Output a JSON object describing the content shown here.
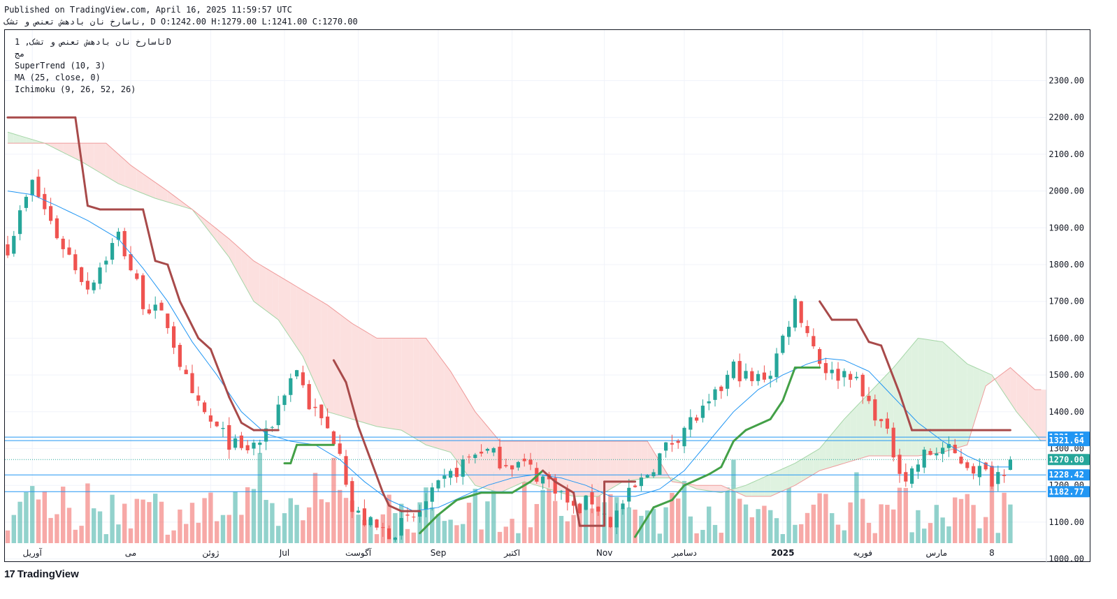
{
  "header": {
    "published": "Published on TradingView.com, April 16, 2025 11:59:57 UTC",
    "ohlc": "ناسارخ نان بادهش تعنص و تشک, D O:1242.00 H:1279.00 L:1241.00 C:1270.00"
  },
  "legend": {
    "symbol": "ناسارخ نان بادهش تعنص و تشک, 1D",
    "exchange": "مج",
    "supertrend": "SuperTrend (10, 3)",
    "ma": "MA (25, close, 0)",
    "ichimoku": "Ichimoku (9, 26, 52, 26)"
  },
  "brand": {
    "name": "TradingView",
    "mark": "17"
  },
  "colors": {
    "up": "#26a69a",
    "down": "#ef5350",
    "supertrend_up": "#43a047",
    "supertrend_down": "#a84a4a",
    "ma": "#2196f3",
    "hline": "#2196f3",
    "cloud_bear": "#fce0df",
    "cloud_bull": "#dff2e0",
    "span_a": "#a5d6a7",
    "span_b": "#ef9a9a"
  },
  "chart_data": {
    "type": "candlestick",
    "timeframe": "1D",
    "y_ticks": [
      1000,
      1100,
      1200,
      1300,
      1400,
      1500,
      1600,
      1700,
      1800,
      1900,
      2000,
      2100,
      2200,
      2300
    ],
    "x_ticks": [
      {
        "label": "آوریل",
        "i": 4
      },
      {
        "label": "می",
        "i": 20
      },
      {
        "label": "ژوئن",
        "i": 33
      },
      {
        "label": "Jul",
        "i": 45
      },
      {
        "label": "آگوست",
        "i": 57
      },
      {
        "label": "Sep",
        "i": 70
      },
      {
        "label": "اکتبر",
        "i": 82
      },
      {
        "label": "Nov",
        "i": 97
      },
      {
        "label": "دسامبر",
        "i": 110
      },
      {
        "label": "2025",
        "i": 126
      },
      {
        "label": "فوریه",
        "i": 139
      },
      {
        "label": "مارس",
        "i": 151
      },
      {
        "label": "8",
        "i": 160
      }
    ],
    "price_tags": [
      {
        "label": "1331.15",
        "value": 1331.15,
        "color": "#2196f3",
        "line": true
      },
      {
        "label": "1321.64",
        "value": 1321.64,
        "color": "#2196f3",
        "line": true
      },
      {
        "label": "1270.00",
        "value": 1270.0,
        "color": "#26a69a",
        "line": false
      },
      {
        "label": "1228.42",
        "value": 1228.42,
        "color": "#2196f3",
        "line": true
      },
      {
        "label": "1182.77",
        "value": 1182.77,
        "color": "#2196f3",
        "line": true
      }
    ],
    "last_ohlc": {
      "open": 1242.0,
      "high": 1279.0,
      "low": 1241.0,
      "close": 1270.0
    },
    "close_anchors": [
      [
        0,
        1850
      ],
      [
        4,
        2020
      ],
      [
        8,
        1880
      ],
      [
        13,
        1740
      ],
      [
        18,
        1880
      ],
      [
        22,
        1700
      ],
      [
        26,
        1640
      ],
      [
        30,
        1430
      ],
      [
        34,
        1350
      ],
      [
        38,
        1290
      ],
      [
        42,
        1330
      ],
      [
        45,
        1460
      ],
      [
        47,
        1520
      ],
      [
        49,
        1420
      ],
      [
        52,
        1350
      ],
      [
        54,
        1310
      ],
      [
        56,
        1130
      ],
      [
        60,
        1080
      ],
      [
        62,
        1075
      ],
      [
        64,
        1090
      ],
      [
        66,
        1110
      ],
      [
        70,
        1190
      ],
      [
        74,
        1260
      ],
      [
        77,
        1300
      ],
      [
        80,
        1270
      ],
      [
        84,
        1255
      ],
      [
        86,
        1230
      ],
      [
        89,
        1200
      ],
      [
        92,
        1130
      ],
      [
        95,
        1160
      ],
      [
        98,
        1100
      ],
      [
        100,
        1150
      ],
      [
        103,
        1210
      ],
      [
        106,
        1280
      ],
      [
        110,
        1360
      ],
      [
        114,
        1410
      ],
      [
        118,
        1520
      ],
      [
        121,
        1480
      ],
      [
        124,
        1510
      ],
      [
        126,
        1600
      ],
      [
        128,
        1700
      ],
      [
        130,
        1620
      ],
      [
        132,
        1540
      ],
      [
        134,
        1500
      ],
      [
        137,
        1510
      ],
      [
        139,
        1440
      ],
      [
        141,
        1400
      ],
      [
        143,
        1330
      ],
      [
        144,
        1290
      ],
      [
        146,
        1220
      ],
      [
        149,
        1280
      ],
      [
        152,
        1300
      ],
      [
        155,
        1270
      ],
      [
        158,
        1240
      ],
      [
        160,
        1220
      ],
      [
        162,
        1250
      ],
      [
        163,
        1270
      ]
    ],
    "supertrend_anchors": [
      [
        0,
        2200
      ],
      [
        11,
        2200
      ],
      [
        13,
        1960
      ],
      [
        15,
        1950
      ],
      [
        22,
        1950
      ],
      [
        24,
        1810
      ],
      [
        26,
        1800
      ],
      [
        28,
        1700
      ],
      [
        31,
        1600
      ],
      [
        33,
        1570
      ],
      [
        36,
        1440
      ],
      [
        38,
        1370
      ],
      [
        40,
        1350
      ],
      [
        44,
        1350
      ],
      [
        45,
        1260,
        "up"
      ],
      [
        46,
        1260,
        "up"
      ],
      [
        47,
        1310,
        "up"
      ],
      [
        53,
        1310,
        "up"
      ],
      [
        53,
        1540
      ],
      [
        55,
        1480
      ],
      [
        57,
        1360
      ],
      [
        59,
        1270
      ],
      [
        61,
        1180
      ],
      [
        62,
        1145
      ],
      [
        64,
        1130
      ],
      [
        67,
        1130
      ],
      [
        67,
        1070,
        "up"
      ],
      [
        70,
        1120,
        "up"
      ],
      [
        73,
        1160,
        "up"
      ],
      [
        77,
        1180,
        "up"
      ],
      [
        82,
        1180,
        "up"
      ],
      [
        85,
        1210,
        "up"
      ],
      [
        87,
        1240,
        "up"
      ],
      [
        87,
        1240
      ],
      [
        89,
        1210
      ],
      [
        92,
        1180
      ],
      [
        93,
        1090
      ],
      [
        97,
        1090
      ],
      [
        97,
        1210
      ],
      [
        102,
        1210
      ],
      [
        102,
        1060,
        "up"
      ],
      [
        105,
        1140,
        "up"
      ],
      [
        108,
        1160,
        "up"
      ],
      [
        110,
        1200,
        "up"
      ],
      [
        114,
        1230,
        "up"
      ],
      [
        116,
        1250,
        "up"
      ],
      [
        118,
        1320,
        "up"
      ],
      [
        120,
        1350,
        "up"
      ],
      [
        124,
        1380,
        "up"
      ],
      [
        126,
        1430,
        "up"
      ],
      [
        128,
        1520,
        "up"
      ],
      [
        132,
        1520,
        "up"
      ],
      [
        132,
        1700
      ],
      [
        134,
        1650
      ],
      [
        138,
        1650
      ],
      [
        140,
        1590
      ],
      [
        142,
        1580
      ],
      [
        145,
        1450
      ],
      [
        147,
        1350
      ],
      [
        150,
        1350
      ],
      [
        163,
        1350
      ]
    ],
    "ma_anchors": [
      [
        0,
        2000
      ],
      [
        4,
        1990
      ],
      [
        8,
        1960
      ],
      [
        13,
        1920
      ],
      [
        18,
        1870
      ],
      [
        22,
        1790
      ],
      [
        26,
        1700
      ],
      [
        30,
        1590
      ],
      [
        34,
        1500
      ],
      [
        38,
        1400
      ],
      [
        42,
        1340
      ],
      [
        46,
        1320
      ],
      [
        50,
        1310
      ],
      [
        54,
        1270
      ],
      [
        58,
        1210
      ],
      [
        62,
        1160
      ],
      [
        66,
        1130
      ],
      [
        70,
        1140
      ],
      [
        74,
        1170
      ],
      [
        78,
        1200
      ],
      [
        82,
        1220
      ],
      [
        86,
        1230
      ],
      [
        90,
        1220
      ],
      [
        94,
        1200
      ],
      [
        98,
        1170
      ],
      [
        102,
        1170
      ],
      [
        106,
        1190
      ],
      [
        110,
        1240
      ],
      [
        114,
        1320
      ],
      [
        118,
        1400
      ],
      [
        122,
        1460
      ],
      [
        126,
        1500
      ],
      [
        130,
        1530
      ],
      [
        133,
        1545
      ],
      [
        136,
        1540
      ],
      [
        140,
        1510
      ],
      [
        144,
        1440
      ],
      [
        148,
        1370
      ],
      [
        152,
        1320
      ],
      [
        156,
        1280
      ],
      [
        160,
        1250
      ],
      [
        163,
        1250
      ]
    ],
    "span_b_anchors": [
      [
        0,
        2130
      ],
      [
        16,
        2130
      ],
      [
        20,
        2070
      ],
      [
        26,
        2000
      ],
      [
        30,
        1950
      ],
      [
        36,
        1870
      ],
      [
        40,
        1810
      ],
      [
        44,
        1770
      ],
      [
        48,
        1730
      ],
      [
        52,
        1690
      ],
      [
        56,
        1640
      ],
      [
        60,
        1600
      ],
      [
        64,
        1600
      ],
      [
        68,
        1600
      ],
      [
        72,
        1510
      ],
      [
        76,
        1400
      ],
      [
        80,
        1320
      ],
      [
        84,
        1320
      ],
      [
        88,
        1320
      ],
      [
        92,
        1320
      ],
      [
        96,
        1320
      ],
      [
        100,
        1320
      ],
      [
        104,
        1320
      ],
      [
        108,
        1210
      ],
      [
        112,
        1200
      ],
      [
        116,
        1200
      ],
      [
        120,
        1170
      ],
      [
        124,
        1170
      ],
      [
        128,
        1200
      ],
      [
        132,
        1240
      ],
      [
        136,
        1260
      ],
      [
        140,
        1280
      ],
      [
        144,
        1280
      ],
      [
        148,
        1280
      ],
      [
        152,
        1290
      ],
      [
        156,
        1310
      ],
      [
        159,
        1470
      ],
      [
        163,
        1520
      ],
      [
        167,
        1460
      ],
      [
        172,
        1460
      ]
    ],
    "span_a_anchors": [
      [
        0,
        2160
      ],
      [
        6,
        2130
      ],
      [
        12,
        2080
      ],
      [
        18,
        2020
      ],
      [
        24,
        1980
      ],
      [
        30,
        1950
      ],
      [
        36,
        1820
      ],
      [
        40,
        1700
      ],
      [
        44,
        1650
      ],
      [
        48,
        1550
      ],
      [
        52,
        1400
      ],
      [
        56,
        1380
      ],
      [
        60,
        1360
      ],
      [
        64,
        1350
      ],
      [
        68,
        1310
      ],
      [
        72,
        1290
      ],
      [
        76,
        1200
      ],
      [
        80,
        1180
      ],
      [
        84,
        1210
      ],
      [
        88,
        1190
      ],
      [
        92,
        1170
      ],
      [
        96,
        1170
      ],
      [
        100,
        1210
      ],
      [
        104,
        1220
      ],
      [
        108,
        1220
      ],
      [
        112,
        1190
      ],
      [
        116,
        1180
      ],
      [
        120,
        1200
      ],
      [
        124,
        1230
      ],
      [
        128,
        1260
      ],
      [
        132,
        1300
      ],
      [
        136,
        1380
      ],
      [
        140,
        1450
      ],
      [
        144,
        1520
      ],
      [
        148,
        1600
      ],
      [
        152,
        1590
      ],
      [
        156,
        1530
      ],
      [
        160,
        1500
      ],
      [
        164,
        1400
      ],
      [
        168,
        1320
      ],
      [
        172,
        1320
      ]
    ]
  }
}
